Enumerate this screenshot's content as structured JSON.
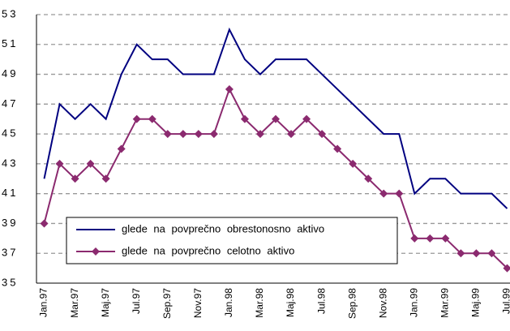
{
  "chart_data": {
    "type": "line",
    "categories": [
      "Jan.97",
      null,
      "Mar.97",
      null,
      "Maj.97",
      null,
      "Jul.97",
      null,
      "Sep.97",
      null,
      "Nov.97",
      null,
      "Jan.98",
      null,
      "Mar.98",
      null,
      "Maj.98",
      null,
      "Jul.98",
      null,
      "Sep.98",
      null,
      "Nov.98",
      null,
      "Jan.99",
      null,
      "Mar.99",
      null,
      "Maj.99",
      null,
      "Jul.99"
    ],
    "series": [
      {
        "name": "glede na povprečno obrestonosno aktivo",
        "color": "#000080",
        "marker": "none",
        "values": [
          42,
          47,
          46,
          47,
          46,
          49,
          51,
          50,
          50,
          49,
          49,
          49,
          52,
          50,
          49,
          50,
          50,
          50,
          49,
          48,
          47,
          46,
          45,
          45,
          41,
          42,
          42,
          41,
          41,
          41,
          40
        ]
      },
      {
        "name": "glede na povprečno celotno aktivo",
        "color": "#8b2a6f",
        "marker": "diamond",
        "values": [
          39,
          43,
          42,
          43,
          42,
          44,
          46,
          46,
          45,
          45,
          45,
          45,
          48,
          46,
          45,
          46,
          45,
          46,
          45,
          44,
          43,
          42,
          41,
          41,
          38,
          38,
          38,
          37,
          37,
          37,
          36
        ]
      }
    ],
    "ylim": [
      35,
      53
    ],
    "yticks": [
      35,
      37,
      39,
      41,
      43,
      45,
      47,
      49,
      51,
      53
    ],
    "grid": true,
    "legend": "lower left"
  }
}
